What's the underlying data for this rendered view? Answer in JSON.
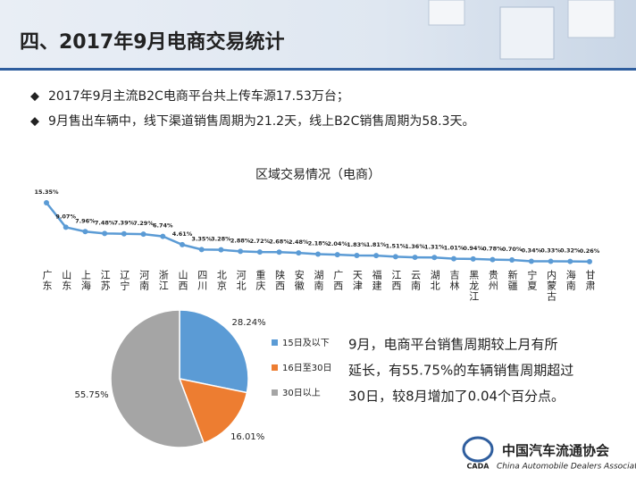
{
  "header": {
    "title": "四、2017年9月电商交易统计"
  },
  "bullets": [
    "2017年9月主流B2C电商平台共上传车源17.53万台；",
    "9月售出车辆中，线下渠道销售周期为21.2天，线上B2C销售周期为58.3天。"
  ],
  "chart_data": [
    {
      "type": "line",
      "title": "区域交易情况（电商）",
      "color": "#5b9bd5",
      "categories": [
        "广东",
        "山东",
        "上海",
        "江苏",
        "辽宁",
        "河南",
        "浙江",
        "山西",
        "四川",
        "北京",
        "河北",
        "重庆",
        "陕西",
        "安徽",
        "湖南",
        "广西",
        "天津",
        "福建",
        "江西",
        "云南",
        "湖北",
        "吉林",
        "黑龙江",
        "贵州",
        "新疆",
        "宁夏",
        "内蒙古",
        "海南",
        "甘肃"
      ],
      "values": [
        15.35,
        9.07,
        7.96,
        7.48,
        7.39,
        7.29,
        6.74,
        4.61,
        3.35,
        3.28,
        2.88,
        2.72,
        2.68,
        2.48,
        2.18,
        2.04,
        1.83,
        1.81,
        1.51,
        1.36,
        1.31,
        1.01,
        0.94,
        0.78,
        0.7,
        0.34,
        0.33,
        0.32,
        0.26
      ],
      "value_labels": [
        "15.35%",
        "9.07%",
        "7.96%",
        "7.48%",
        "7.39%",
        "7.29%",
        "6.74%",
        "4.61%",
        "3.35%",
        "3.28%",
        "2.88%",
        "2.72%",
        "2.68%",
        "2.48%",
        "2.18%",
        "2.04%",
        "1.83%",
        "1.81%",
        "1.51%",
        "1.36%",
        "1.31%",
        "1.01%",
        "0.94%",
        "0.78%",
        "0.70%",
        "0.34%",
        "0.33%",
        "0.32%",
        "0.26%"
      ]
    },
    {
      "type": "pie",
      "categories": [
        "15日及以下",
        "16日至30日",
        "30日以上"
      ],
      "values": [
        28.24,
        16.01,
        55.75
      ],
      "value_labels": [
        "28.24%",
        "16.01%",
        "55.75%"
      ],
      "colors": [
        "#5b9bd5",
        "#ed7d31",
        "#a5a5a5"
      ]
    }
  ],
  "note": [
    "9月，电商平台销售周期较上月有所",
    "延长，有55.75%的车辆销售周期超过",
    "30日，较8月增加了0.04个百分点。"
  ],
  "logo": {
    "abbr": "CADA",
    "name": "中国汽车流通协会",
    "english": "China Automobile Dealers Association"
  }
}
